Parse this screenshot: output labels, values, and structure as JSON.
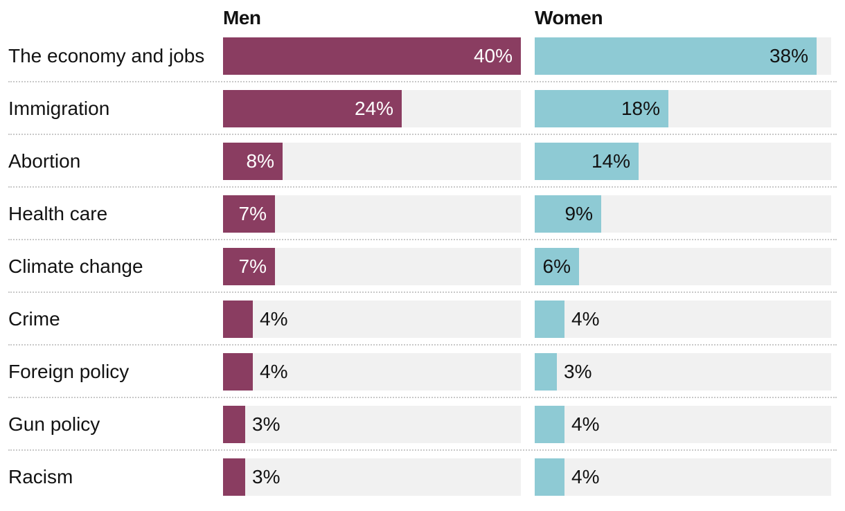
{
  "chart_data": {
    "type": "bar",
    "orientation": "horizontal",
    "categories": [
      "The economy and jobs",
      "Immigration",
      "Abortion",
      "Health care",
      "Climate change",
      "Crime",
      "Foreign policy",
      "Gun policy",
      "Racism"
    ],
    "series": [
      {
        "name": "Men",
        "color": "#8a3d61",
        "values": [
          40,
          24,
          8,
          7,
          7,
          4,
          4,
          3,
          3
        ]
      },
      {
        "name": "Women",
        "color": "#8ecad4",
        "values": [
          38,
          18,
          14,
          9,
          6,
          4,
          3,
          4,
          4
        ]
      }
    ],
    "value_suffix": "%",
    "xlim": [
      0,
      40
    ],
    "track_color": "#f1f1f1"
  }
}
